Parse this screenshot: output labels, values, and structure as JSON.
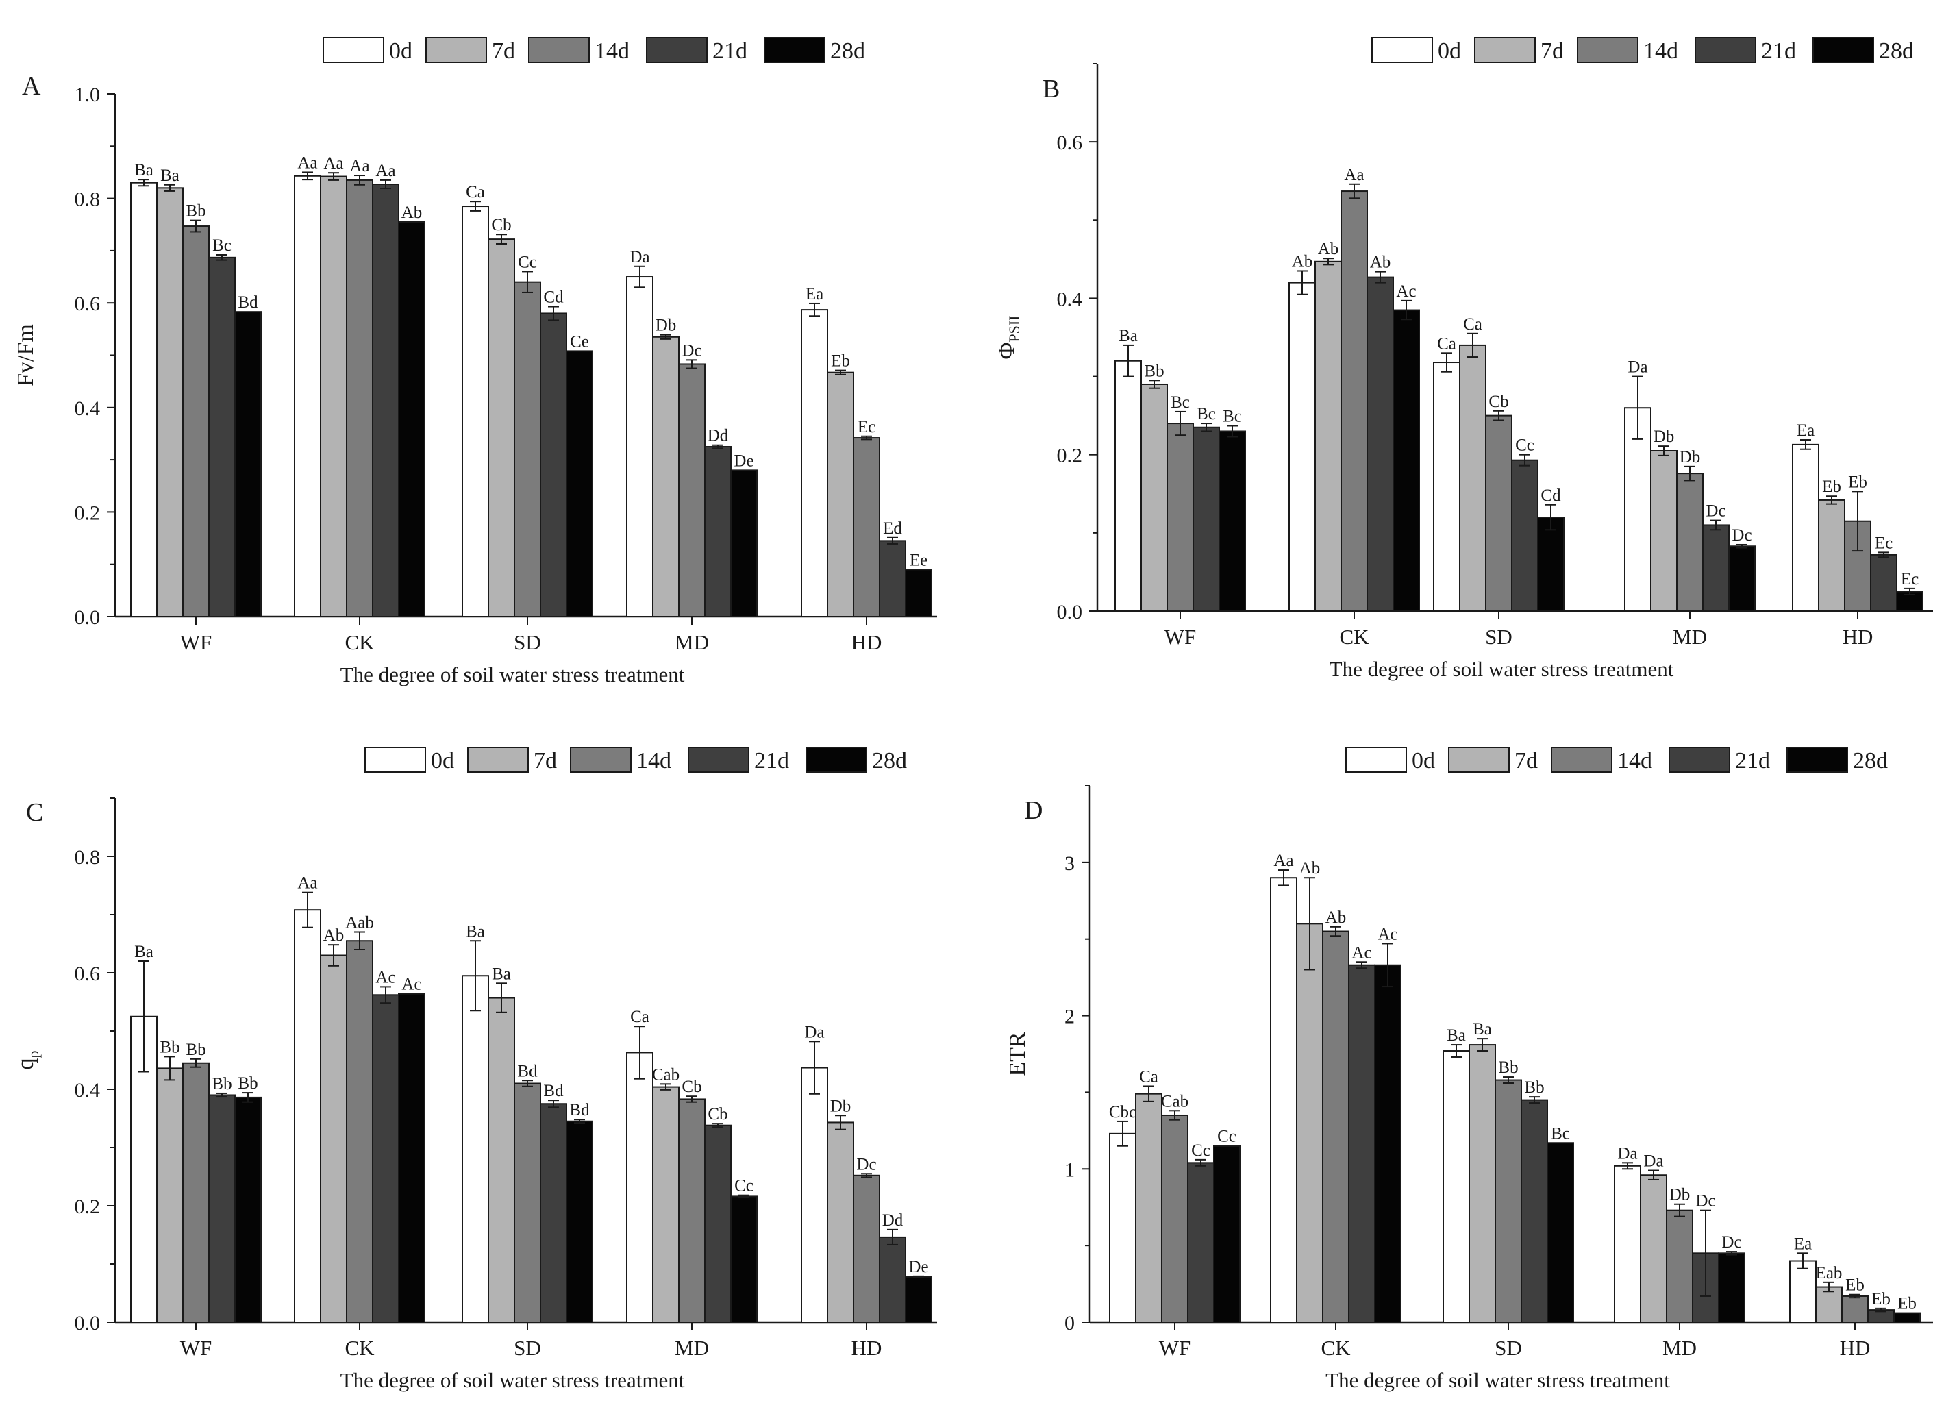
{
  "figure": {
    "series_names": [
      "0d",
      "7d",
      "14d",
      "21d",
      "28d"
    ],
    "series_colors": [
      "#ffffff",
      "#b3b3b3",
      "#7c7c7c",
      "#3f3f3f",
      "#050505"
    ],
    "bar_stroke": "#1a1a1a"
  },
  "chart_data": [
    {
      "panel": "A",
      "type": "bar",
      "title": "",
      "xlabel": "The degree of soil water stress treatment",
      "ylabel": "Fv/Fm",
      "ylim": [
        0,
        1.0
      ],
      "yticks": [
        0.0,
        0.2,
        0.4,
        0.6,
        0.8,
        1.0
      ],
      "ytick_labels": [
        "0.0",
        "0.2",
        "0.4",
        "0.6",
        "0.8",
        "1.0"
      ],
      "categories": [
        "WF",
        "CK",
        "SD",
        "MD",
        "HD"
      ],
      "legend": "top-right",
      "series": [
        {
          "name": "0d",
          "values": [
            0.83,
            0.843,
            0.785,
            0.65,
            0.587
          ],
          "errors": [
            0.006,
            0.007,
            0.009,
            0.02,
            0.012
          ],
          "labels": [
            "Ba",
            "Aa",
            "Ca",
            "Da",
            "Ea"
          ]
        },
        {
          "name": "7d",
          "values": [
            0.82,
            0.842,
            0.722,
            0.535,
            0.467
          ],
          "errors": [
            0.006,
            0.007,
            0.009,
            0.004,
            0.004
          ],
          "labels": [
            "Ba",
            "Aa",
            "Cb",
            "Db",
            "Eb"
          ]
        },
        {
          "name": "14d",
          "values": [
            0.747,
            0.835,
            0.64,
            0.483,
            0.342
          ],
          "errors": [
            0.011,
            0.009,
            0.02,
            0.008,
            0.003
          ],
          "labels": [
            "Bb",
            "Aa",
            "Cc",
            "Dc",
            "Ec"
          ]
        },
        {
          "name": "21d",
          "values": [
            0.687,
            0.827,
            0.58,
            0.325,
            0.145
          ],
          "errors": [
            0.005,
            0.008,
            0.013,
            0.003,
            0.006
          ],
          "labels": [
            "Bc",
            "Aa",
            "Cd",
            "Dd",
            "Ed"
          ]
        },
        {
          "name": "28d",
          "values": [
            0.583,
            0.755,
            0.508,
            0.28,
            0.09
          ],
          "errors": [
            0,
            0,
            0,
            0,
            0
          ],
          "labels": [
            "Bd",
            "Ab",
            "Ce",
            "De",
            "Ee"
          ]
        }
      ]
    },
    {
      "panel": "B",
      "type": "bar",
      "title": "",
      "xlabel": "The degree of soil water stress treatment",
      "ylabel": "Φ",
      "ylabel_sub": "PSII",
      "ylim": [
        0,
        0.7
      ],
      "yticks": [
        0.0,
        0.2,
        0.4,
        0.6
      ],
      "ytick_labels": [
        "0.0",
        "0.2",
        "0.4",
        "0.6"
      ],
      "categories": [
        "WF",
        "CK",
        "SD",
        "MD",
        "HD"
      ],
      "legend": "top-right",
      "series": [
        {
          "name": "0d",
          "values": [
            0.32,
            0.42,
            0.318,
            0.26,
            0.213
          ],
          "errors": [
            0.02,
            0.015,
            0.012,
            0.04,
            0.006
          ],
          "labels": [
            "Ba",
            "Ab",
            "Ca",
            "Da",
            "Ea"
          ]
        },
        {
          "name": "7d",
          "values": [
            0.29,
            0.447,
            0.34,
            0.205,
            0.142
          ],
          "errors": [
            0.005,
            0.004,
            0.015,
            0.006,
            0.005
          ],
          "labels": [
            "Bb",
            "Ab",
            "Ca",
            "Db",
            "Eb"
          ]
        },
        {
          "name": "14d",
          "values": [
            0.24,
            0.537,
            0.25,
            0.176,
            0.115
          ],
          "errors": [
            0.015,
            0.009,
            0.006,
            0.009,
            0.038
          ],
          "labels": [
            "Bc",
            "Aa",
            "Cb",
            "Db",
            "Eb"
          ]
        },
        {
          "name": "21d",
          "values": [
            0.235,
            0.427,
            0.193,
            0.11,
            0.072
          ],
          "errors": [
            0.005,
            0.007,
            0.007,
            0.006,
            0.003
          ],
          "labels": [
            "Bc",
            "Ab",
            "Cc",
            "Dc",
            "Ec"
          ]
        },
        {
          "name": "28d",
          "values": [
            0.23,
            0.385,
            0.12,
            0.083,
            0.025
          ],
          "errors": [
            0.007,
            0.012,
            0.016,
            0.002,
            0.004
          ],
          "labels": [
            "Bc",
            "Ac",
            "Cd",
            "Dc",
            "Ec"
          ]
        }
      ]
    },
    {
      "panel": "C",
      "type": "bar",
      "title": "",
      "xlabel": "The degree of soil water stress treatment",
      "ylabel": "q",
      "ylabel_sub": "p",
      "ylim": [
        0,
        0.9
      ],
      "yticks": [
        0.0,
        0.2,
        0.4,
        0.6,
        0.8
      ],
      "ytick_labels": [
        "0.0",
        "0.2",
        "0.4",
        "0.6",
        "0.8"
      ],
      "categories": [
        "WF",
        "CK",
        "SD",
        "MD",
        "HD"
      ],
      "legend": "top-right",
      "series": [
        {
          "name": "0d",
          "values": [
            0.525,
            0.708,
            0.595,
            0.463,
            0.437
          ],
          "errors": [
            0.095,
            0.03,
            0.06,
            0.045,
            0.045
          ],
          "labels": [
            "Ba",
            "Aa",
            "Ba",
            "Ca",
            "Da"
          ]
        },
        {
          "name": "7d",
          "values": [
            0.436,
            0.63,
            0.557,
            0.404,
            0.343
          ],
          "errors": [
            0.02,
            0.018,
            0.025,
            0.005,
            0.012
          ],
          "labels": [
            "Bb",
            "Ab",
            "Ba",
            "Cab",
            "Db"
          ]
        },
        {
          "name": "14d",
          "values": [
            0.445,
            0.655,
            0.41,
            0.383,
            0.252
          ],
          "errors": [
            0.007,
            0.015,
            0.005,
            0.005,
            0.003
          ],
          "labels": [
            "Bb",
            "Aab",
            "Bd",
            "Cb",
            "Dc"
          ]
        },
        {
          "name": "21d",
          "values": [
            0.39,
            0.562,
            0.375,
            0.338,
            0.146
          ],
          "errors": [
            0.003,
            0.014,
            0.006,
            0.003,
            0.013
          ],
          "labels": [
            "Bb",
            "Ac",
            "Bd",
            "Cb",
            "Dd"
          ]
        },
        {
          "name": "28d",
          "values": [
            0.386,
            0.564,
            0.345,
            0.216,
            0.078
          ],
          "errors": [
            0.008,
            0,
            0.003,
            0.002,
            0.001
          ],
          "labels": [
            "Bb",
            "Ac",
            "Bd",
            "Cc",
            "De"
          ]
        }
      ]
    },
    {
      "panel": "D",
      "type": "bar",
      "title": "",
      "xlabel": "The degree of soil water stress treatment",
      "ylabel": "ETR",
      "ylim": [
        0,
        3.5
      ],
      "yticks": [
        0,
        1,
        2,
        3
      ],
      "ytick_labels": [
        "0",
        "1",
        "2",
        "3"
      ],
      "categories": [
        "WF",
        "CK",
        "SD",
        "MD",
        "HD"
      ],
      "legend": "top-right",
      "series": [
        {
          "name": "0d",
          "values": [
            1.23,
            2.9,
            1.77,
            1.02,
            0.4
          ],
          "errors": [
            0.08,
            0.05,
            0.04,
            0.02,
            0.05
          ],
          "labels": [
            "Cbc",
            "Aa",
            "Ba",
            "Da",
            "Ea"
          ]
        },
        {
          "name": "7d",
          "values": [
            1.49,
            2.6,
            1.81,
            0.96,
            0.23
          ],
          "errors": [
            0.05,
            0.3,
            0.04,
            0.03,
            0.03
          ],
          "labels": [
            "Ca",
            "Ab",
            "Ba",
            "Da",
            "Eab"
          ]
        },
        {
          "name": "14d",
          "values": [
            1.35,
            2.55,
            1.58,
            0.73,
            0.17
          ],
          "errors": [
            0.03,
            0.03,
            0.02,
            0.04,
            0.01
          ],
          "labels": [
            "Cab",
            "Ab",
            "Bb",
            "Db",
            "Eb"
          ]
        },
        {
          "name": "21d",
          "values": [
            1.04,
            2.33,
            1.45,
            0.45,
            0.08
          ],
          "errors": [
            0.02,
            0.02,
            0.02,
            0.28,
            0.01
          ],
          "labels": [
            "Cc",
            "Ac",
            "Bb",
            "Dc",
            "Eb"
          ]
        },
        {
          "name": "28d",
          "values": [
            1.15,
            2.33,
            1.17,
            0.45,
            0.06
          ],
          "errors": [
            0,
            0.14,
            0,
            0.01,
            0
          ],
          "labels": [
            "Cc",
            "Ac",
            "Bc",
            "Dc",
            "Eb"
          ]
        }
      ]
    }
  ]
}
